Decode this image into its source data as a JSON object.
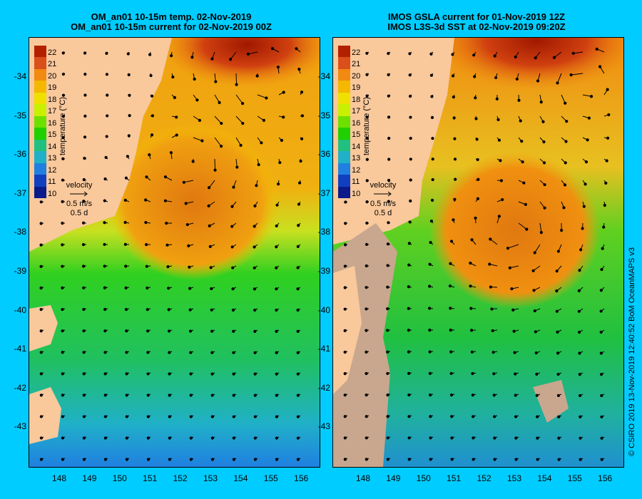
{
  "left_panel": {
    "title_line1": "OM_an01 10-15m temp. 02-Nov-2019",
    "title_line2": "OM_an01 10-15m current for 02-Nov-2019 00Z"
  },
  "right_panel": {
    "title_line1": "IMOS GSLA current for 01-Nov-2019 12Z",
    "title_line2": "IMOS L3S-3d SST at 02-Nov-2019 09:20Z"
  },
  "axes": {
    "y_ticks": [
      "-34",
      "-35",
      "-36",
      "-37",
      "-38",
      "-39",
      "-40",
      "-41",
      "-42",
      "-43"
    ],
    "x_ticks": [
      "148",
      "149",
      "150",
      "151",
      "152",
      "153",
      "154",
      "155",
      "156"
    ]
  },
  "colorbar": {
    "title": "temperature (°C)",
    "labels": [
      "22",
      "21",
      "20",
      "19",
      "18",
      "17",
      "16",
      "15",
      "14",
      "13",
      "12",
      "11",
      "10"
    ],
    "colors": [
      "#b32000",
      "#d9501a",
      "#f08a10",
      "#f5b800",
      "#f0e000",
      "#c8f000",
      "#6ee000",
      "#20d000",
      "#20c080",
      "#20b0c8",
      "#2080e0",
      "#1040c0",
      "#0a1a8a"
    ]
  },
  "velocity_legend": {
    "label": "velocity",
    "speed": "0.5 m/s",
    "time": "0.5 d"
  },
  "credit": "© CSIRO 2019  13-Nov-2019 12:40:52 BoM OceanMAPS v3",
  "colors": {
    "background": "#00ccff",
    "land": "#f9c89b",
    "cloud_mask": "#c8a78e"
  }
}
